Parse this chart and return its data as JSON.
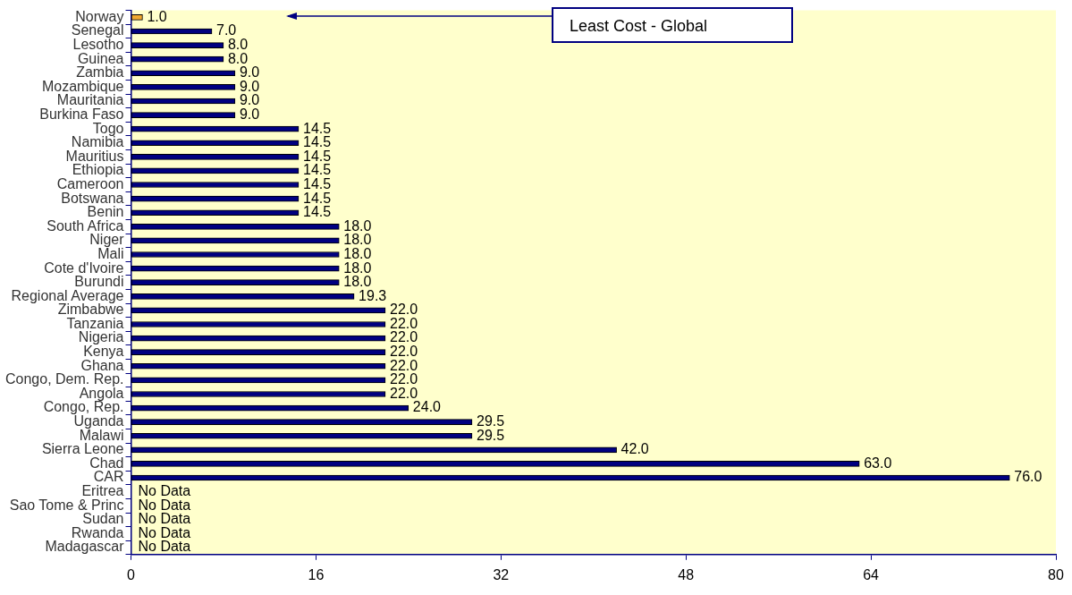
{
  "chart_data": {
    "type": "bar",
    "orientation": "horizontal",
    "categories": [
      "Norway",
      "Senegal",
      "Lesotho",
      "Guinea",
      "Zambia",
      "Mozambique",
      "Mauritania",
      "Burkina Faso",
      "Togo",
      "Namibia",
      "Mauritius",
      "Ethiopia",
      "Cameroon",
      "Botswana",
      "Benin",
      "South Africa",
      "Niger",
      "Mali",
      "Cote d'Ivoire",
      "Burundi",
      "Regional Average",
      "Zimbabwe",
      "Tanzania",
      "Nigeria",
      "Kenya",
      "Ghana",
      "Congo, Dem. Rep.",
      "Angola",
      "Congo, Rep.",
      "Uganda",
      "Malawi",
      "Sierra Leone",
      "Chad",
      "CAR",
      "Eritrea",
      "Sao Tome & Princ",
      "Sudan",
      "Rwanda",
      "Madagascar"
    ],
    "values": [
      1,
      7,
      8,
      8,
      9,
      9,
      9,
      9,
      14.5,
      14.5,
      14.5,
      14.5,
      14.5,
      14.5,
      14.5,
      18,
      18,
      18,
      18,
      18,
      19.3,
      22,
      22,
      22,
      22,
      22,
      22,
      22,
      24,
      29.5,
      29.5,
      42,
      63,
      76,
      null,
      null,
      null,
      null,
      null
    ],
    "value_labels": [
      "1.0",
      "7.0",
      "8.0",
      "8.0",
      "9.0",
      "9.0",
      "9.0",
      "9.0",
      "14.5",
      "14.5",
      "14.5",
      "14.5",
      "14.5",
      "14.5",
      "14.5",
      "18.0",
      "18.0",
      "18.0",
      "18.0",
      "18.0",
      "19.3",
      "22.0",
      "22.0",
      "22.0",
      "22.0",
      "22.0",
      "22.0",
      "22.0",
      "24.0",
      "29.5",
      "29.5",
      "42.0",
      "63.0",
      "76.0",
      "No Data",
      "No Data",
      "No Data",
      "No Data",
      "No Data"
    ],
    "colors": [
      "#f0a830",
      "#000080",
      "#000080",
      "#000080",
      "#000080",
      "#000080",
      "#000080",
      "#000080",
      "#000080",
      "#000080",
      "#000080",
      "#000080",
      "#000080",
      "#000080",
      "#000080",
      "#000080",
      "#000080",
      "#000080",
      "#000080",
      "#000080",
      "#000080",
      "#000080",
      "#000080",
      "#000080",
      "#000080",
      "#000080",
      "#000080",
      "#000080",
      "#000080",
      "#000080",
      "#000080",
      "#000080",
      "#000080",
      "#000080",
      "#000080",
      "#000080",
      "#000080",
      "#000080",
      "#000080"
    ],
    "xlim": [
      0,
      80
    ],
    "xticks": [
      0,
      16,
      32,
      48,
      64,
      80
    ],
    "grid": false,
    "legend": false,
    "annotations": [
      "Least Cost - Global"
    ]
  }
}
